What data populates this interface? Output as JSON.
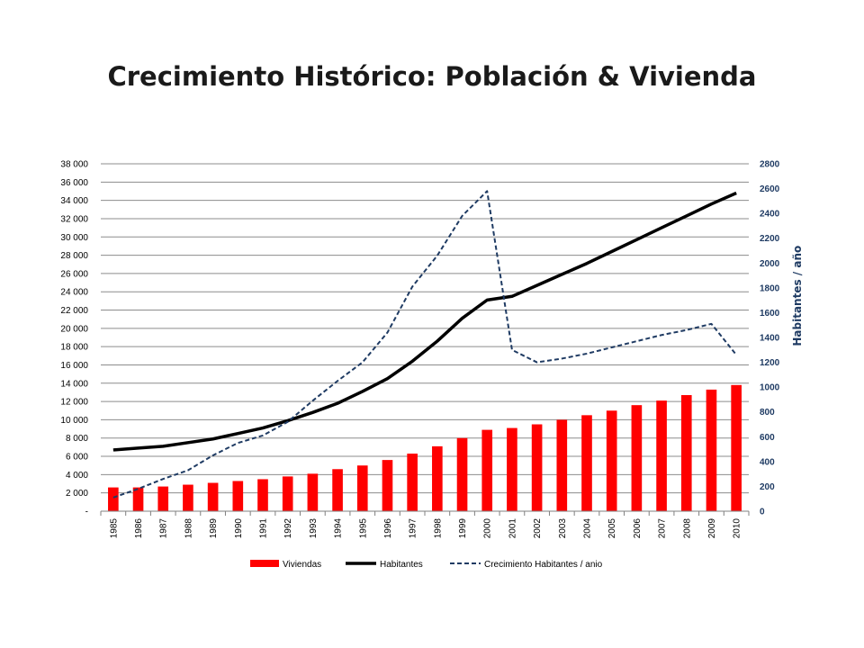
{
  "title": "Crecimiento Histórico: Población & Vivienda",
  "chart_data": {
    "type": "bar",
    "categories": [
      "1985",
      "1986",
      "1987",
      "1988",
      "1989",
      "1990",
      "1991",
      "1992",
      "1993",
      "1994",
      "1995",
      "1996",
      "1997",
      "1998",
      "1999",
      "2000",
      "2001",
      "2002",
      "2003",
      "2004",
      "2005",
      "2006",
      "2007",
      "2008",
      "2009",
      "2010"
    ],
    "series": [
      {
        "name": "Viviendas",
        "type": "bar",
        "axis": "left",
        "color": "#ff0000",
        "values": [
          2600,
          2600,
          2700,
          2900,
          3100,
          3300,
          3500,
          3800,
          4100,
          4600,
          5000,
          5600,
          6300,
          7100,
          8000,
          8900,
          9100,
          9500,
          10000,
          10500,
          11000,
          11600,
          12100,
          12700,
          13300,
          13800
        ]
      },
      {
        "name": "Habitantes",
        "type": "line",
        "axis": "left",
        "color": "#000000",
        "values": [
          6700,
          6900,
          7100,
          7500,
          7900,
          8500,
          9100,
          9900,
          10800,
          11800,
          13100,
          14500,
          16400,
          18600,
          21100,
          23100,
          23500,
          24700,
          25900,
          27100,
          28400,
          29700,
          31000,
          32300,
          33600,
          34800
        ]
      },
      {
        "name": "Crecimiento Habitantes / anio",
        "type": "line",
        "axis": "right",
        "color": "#1f3b63",
        "dash": true,
        "values": [
          110,
          180,
          260,
          330,
          450,
          550,
          610,
          720,
          890,
          1050,
          1200,
          1440,
          1810,
          2060,
          2380,
          2580,
          1300,
          1200,
          1230,
          1270,
          1320,
          1370,
          1420,
          1460,
          1510,
          1260
        ]
      }
    ],
    "ylim": [
      0,
      38000
    ],
    "yticks": [
      {
        "v": 0,
        "t": "-"
      },
      {
        "v": 2000,
        "t": "2 000"
      },
      {
        "v": 4000,
        "t": "4 000"
      },
      {
        "v": 6000,
        "t": "6 000"
      },
      {
        "v": 8000,
        "t": "8 000"
      },
      {
        "v": 10000,
        "t": "10 000"
      },
      {
        "v": 12000,
        "t": "12 000"
      },
      {
        "v": 14000,
        "t": "14 000"
      },
      {
        "v": 16000,
        "t": "16 000"
      },
      {
        "v": 18000,
        "t": "18 000"
      },
      {
        "v": 20000,
        "t": "20 000"
      },
      {
        "v": 22000,
        "t": "22 000"
      },
      {
        "v": 24000,
        "t": "24 000"
      },
      {
        "v": 26000,
        "t": "26 000"
      },
      {
        "v": 28000,
        "t": "28 000"
      },
      {
        "v": 30000,
        "t": "30 000"
      },
      {
        "v": 32000,
        "t": "32 000"
      },
      {
        "v": 34000,
        "t": "34 000"
      },
      {
        "v": 36000,
        "t": "36 000"
      },
      {
        "v": 38000,
        "t": "38 000"
      }
    ],
    "y2lim": [
      0,
      2800
    ],
    "y2ticks": [
      "0",
      "200",
      "400",
      "600",
      "800",
      "1000",
      "1200",
      "1400",
      "1600",
      "1800",
      "2000",
      "2200",
      "2400",
      "2600",
      "2800"
    ],
    "y2label": "Habitantes / año",
    "xlabel": "",
    "ylabel": "",
    "grid": true,
    "legend": "bottom"
  }
}
